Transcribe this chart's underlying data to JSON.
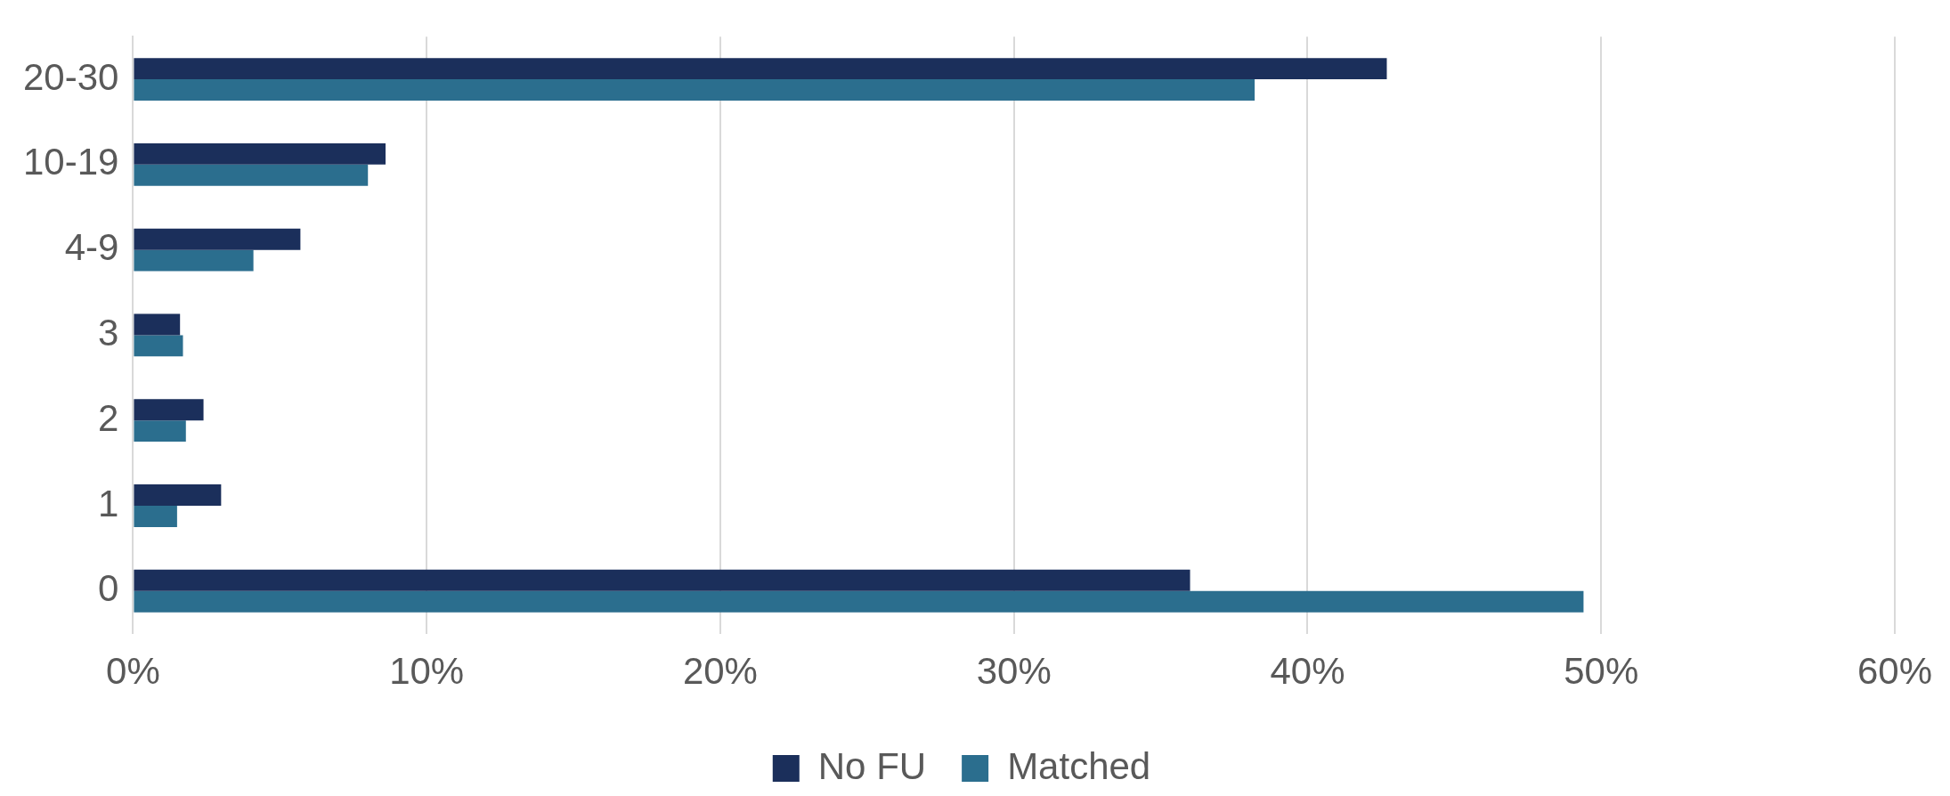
{
  "chart_data": {
    "type": "bar",
    "orientation": "horizontal",
    "categories": [
      "20-30",
      "10-19",
      "4-9",
      "3",
      "2",
      "1",
      "0"
    ],
    "series": [
      {
        "name": "No FU",
        "color": "#1b2f5b",
        "values": [
          42.7,
          8.6,
          5.7,
          1.6,
          2.4,
          3.0,
          36.0
        ]
      },
      {
        "name": "Matched",
        "color": "#2b6e8e",
        "values": [
          38.2,
          8.0,
          4.1,
          1.7,
          1.8,
          1.5,
          49.4
        ]
      }
    ],
    "xlim": [
      0,
      60
    ],
    "xticks": [
      {
        "value": 0,
        "label": "0%"
      },
      {
        "value": 10,
        "label": "10%"
      },
      {
        "value": 20,
        "label": "20%"
      },
      {
        "value": 30,
        "label": "30%"
      },
      {
        "value": 40,
        "label": "40%"
      },
      {
        "value": 50,
        "label": "50%"
      },
      {
        "value": 60,
        "label": "60%"
      }
    ],
    "grid": "x",
    "legend": "bottom"
  }
}
